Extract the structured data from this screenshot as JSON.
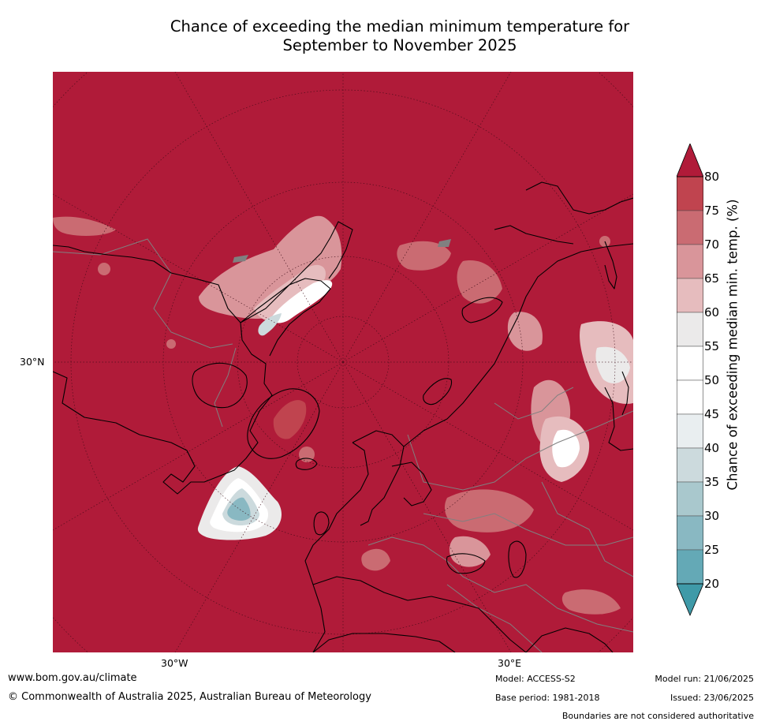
{
  "title": {
    "line1": "Chance of exceeding the median minimum temperature for",
    "line2": "September to November 2025"
  },
  "map": {
    "projection": "north-polar-stereographic",
    "lat_labels": [
      "30°N"
    ],
    "lon_labels": [
      "30°W",
      "30°E"
    ],
    "background_color": "#b01b39",
    "coast_color": "#000000",
    "border_color": "#808080"
  },
  "colorbar": {
    "title": "Chance of exceeding median min. temp. (%)",
    "ticks": [
      "80",
      "75",
      "70",
      "65",
      "60",
      "55",
      "50",
      "45",
      "40",
      "35",
      "30",
      "25",
      "20"
    ],
    "colors": [
      "#b01b39",
      "#c0444f",
      "#ca6b72",
      "#d9959a",
      "#e6bcbe",
      "#ebeaea",
      "#ffffff",
      "#ffffff",
      "#e9eef0",
      "#ccdadd",
      "#a9c8cd",
      "#89b8c2",
      "#64a9b6",
      "#3f9aa8"
    ]
  },
  "footer": {
    "url": "www.bom.gov.au/climate",
    "copyright": "© Commonwealth of Australia 2025, Australian Bureau of Meteorology",
    "model": "Model: ACCESS-S2",
    "base_period": "Base period: 1981-2018",
    "model_run": "Model run: 21/06/2025",
    "issued": "Issued: 23/06/2025",
    "disclaimer": "Boundaries are not considered authoritative"
  }
}
